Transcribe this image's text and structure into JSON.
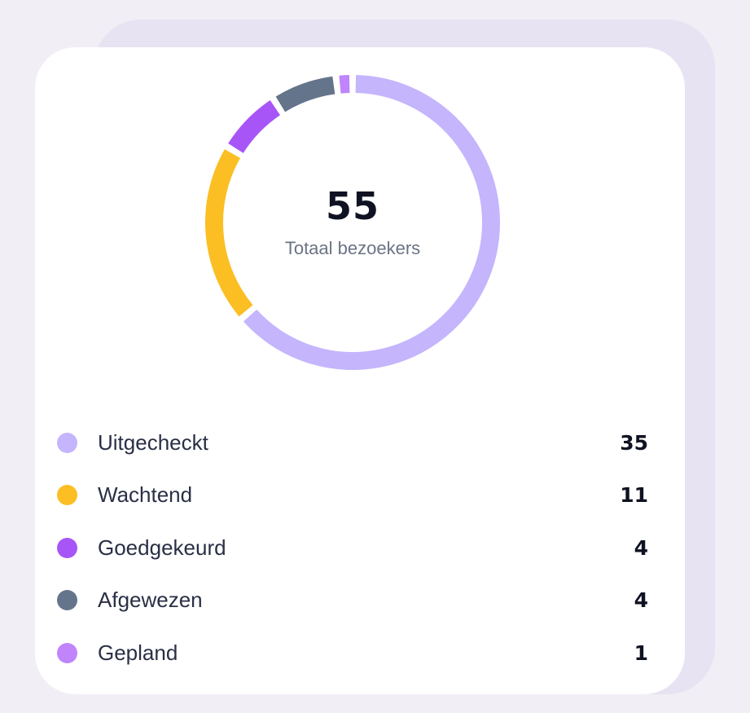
{
  "summary": {
    "total_value": "55",
    "total_label": "Totaal bezoekers"
  },
  "legend": [
    {
      "label": "Uitgecheckt",
      "value": "35",
      "color": "#c4b5fd"
    },
    {
      "label": "Wachtend",
      "value": "11",
      "color": "#fbbf24"
    },
    {
      "label": "Goedgekeurd",
      "value": "4",
      "color": "#a855f7"
    },
    {
      "label": "Afgewezen",
      "value": "4",
      "color": "#64748b"
    },
    {
      "label": "Gepland",
      "value": "1",
      "color": "#c084fc"
    }
  ],
  "chart_data": {
    "type": "pie",
    "variant": "donut",
    "title": "",
    "center_text": {
      "value": 55,
      "label": "Totaal bezoekers"
    },
    "categories": [
      "Uitgecheckt",
      "Wachtend",
      "Goedgekeurd",
      "Afgewezen",
      "Gepland"
    ],
    "values": [
      35,
      11,
      4,
      4,
      1
    ],
    "colors": [
      "#c4b5fd",
      "#fbbf24",
      "#a855f7",
      "#64748b",
      "#c084fc"
    ],
    "start_angle_deg": 0,
    "direction": "clockwise",
    "legend_position": "bottom"
  }
}
